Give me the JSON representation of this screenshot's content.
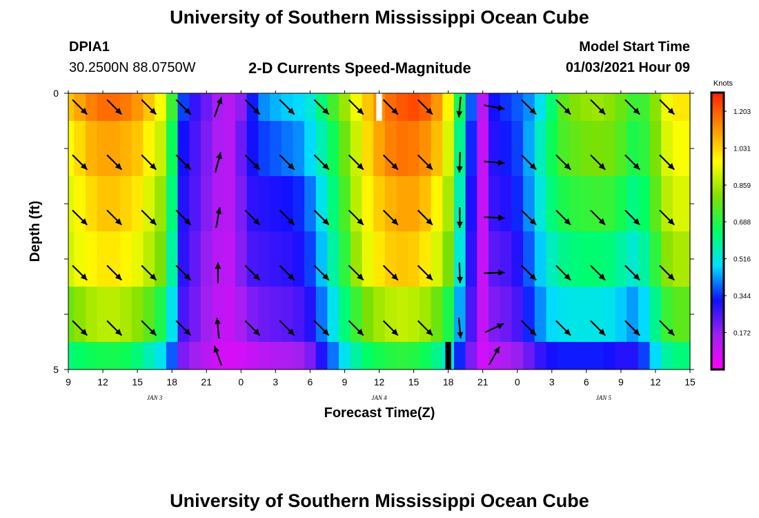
{
  "header": {
    "title": "University of Southern Mississippi Ocean Cube",
    "station": "DPIA1",
    "coords": "30.2500N 88.0750W",
    "subtitle": "2-D Currents Speed-Magnitude",
    "start_label": "Model Start Time",
    "start_value": "01/03/2021 Hour 09"
  },
  "footer": {
    "title": "University of Southern Mississippi Ocean Cube"
  },
  "chart_data": {
    "type": "heatmap",
    "xlabel": "Forecast Time(Z)",
    "ylabel": "Depth (ft)",
    "x_tick_labels": [
      "9",
      "12",
      "15",
      "18",
      "21",
      "0",
      "3",
      "6",
      "9",
      "12",
      "15",
      "18",
      "21",
      "0",
      "3",
      "6",
      "9",
      "12",
      "15"
    ],
    "x_range_hours": [
      0,
      54
    ],
    "day_labels": [
      {
        "label": "JAN 3",
        "hour": 7.5
      },
      {
        "label": "JAN 4",
        "hour": 27
      },
      {
        "label": "JAN 5",
        "hour": 46.5
      }
    ],
    "y_tick_labels": [
      "0",
      "5"
    ],
    "ylim": [
      0,
      5
    ],
    "depth_layers": [
      0.25,
      1.25,
      2.25,
      3.25,
      4.25,
      4.75
    ],
    "colorbar": {
      "unit": "Knots",
      "min": 0.0,
      "max": 1.29,
      "ticks": [
        1.203,
        1.031,
        0.859,
        0.688,
        0.516,
        0.344,
        0.172
      ],
      "colors": [
        "#ff00ff",
        "#a020f0",
        "#1010ff",
        "#00e0ff",
        "#00ff60",
        "#80e000",
        "#ffff00",
        "#ff9000",
        "#ff2000"
      ]
    },
    "speed_by_hour": [
      [
        1.05,
        1.1,
        1.15,
        1.18,
        1.18,
        1.16,
        1.12,
        1.05,
        0.96,
        0.72,
        0.36,
        0.28,
        0.22,
        0.15,
        0.12,
        0.18,
        0.33,
        0.42,
        0.45,
        0.47,
        0.48,
        0.52,
        0.62,
        0.73,
        0.84,
        0.95,
        1.05,
        1.13,
        1.18,
        1.21,
        1.23,
        1.2,
        1.12,
        0.98,
        0.66,
        0.38,
        0.12,
        0.32,
        0.35,
        0.38,
        0.42,
        0.5,
        0.63,
        0.76,
        0.81,
        0.83,
        0.84,
        0.82,
        0.78,
        0.72,
        0.72,
        0.82,
        0.95,
        1.0,
        1.0
      ],
      [
        0.97,
        1.02,
        1.08,
        1.1,
        1.1,
        1.08,
        1.05,
        0.98,
        0.9,
        0.66,
        0.32,
        0.26,
        0.2,
        0.14,
        0.12,
        0.22,
        0.32,
        0.36,
        0.38,
        0.4,
        0.42,
        0.48,
        0.56,
        0.66,
        0.78,
        0.9,
        1.02,
        1.1,
        1.15,
        1.17,
        1.16,
        1.13,
        1.06,
        0.92,
        0.6,
        0.34,
        0.1,
        0.3,
        0.33,
        0.36,
        0.44,
        0.55,
        0.66,
        0.74,
        0.77,
        0.79,
        0.8,
        0.79,
        0.75,
        0.68,
        0.7,
        0.8,
        0.92,
        0.96,
        0.96
      ],
      [
        0.93,
        0.98,
        1.02,
        1.05,
        1.05,
        1.03,
        1.0,
        0.92,
        0.84,
        0.62,
        0.3,
        0.25,
        0.19,
        0.13,
        0.12,
        0.2,
        0.29,
        0.3,
        0.31,
        0.32,
        0.34,
        0.4,
        0.5,
        0.62,
        0.74,
        0.88,
        0.98,
        1.04,
        1.08,
        1.1,
        1.1,
        1.06,
        0.98,
        0.86,
        0.56,
        0.31,
        0.1,
        0.28,
        0.3,
        0.34,
        0.42,
        0.52,
        0.62,
        0.68,
        0.7,
        0.71,
        0.72,
        0.71,
        0.67,
        0.61,
        0.64,
        0.76,
        0.88,
        0.92,
        0.92
      ],
      [
        0.91,
        0.95,
        0.98,
        1.0,
        1.0,
        0.98,
        0.94,
        0.88,
        0.8,
        0.58,
        0.29,
        0.23,
        0.17,
        0.12,
        0.11,
        0.19,
        0.26,
        0.27,
        0.28,
        0.29,
        0.31,
        0.36,
        0.46,
        0.58,
        0.7,
        0.84,
        0.94,
        1.0,
        1.04,
        1.05,
        1.04,
        1.0,
        0.92,
        0.8,
        0.52,
        0.29,
        0.1,
        0.24,
        0.26,
        0.3,
        0.38,
        0.47,
        0.55,
        0.6,
        0.62,
        0.63,
        0.63,
        0.62,
        0.58,
        0.53,
        0.58,
        0.7,
        0.82,
        0.86,
        0.86
      ],
      [
        0.78,
        0.82,
        0.86,
        0.88,
        0.88,
        0.86,
        0.82,
        0.76,
        0.68,
        0.5,
        0.26,
        0.21,
        0.16,
        0.11,
        0.1,
        0.15,
        0.2,
        0.22,
        0.23,
        0.24,
        0.26,
        0.3,
        0.4,
        0.5,
        0.62,
        0.72,
        0.8,
        0.85,
        0.88,
        0.89,
        0.88,
        0.85,
        0.78,
        0.68,
        0.44,
        0.26,
        0.1,
        0.2,
        0.22,
        0.26,
        0.34,
        0.42,
        0.48,
        0.5,
        0.51,
        0.51,
        0.51,
        0.5,
        0.47,
        0.43,
        0.48,
        0.6,
        0.72,
        0.76,
        0.76
      ],
      [
        0.62,
        0.64,
        0.66,
        0.67,
        0.67,
        0.66,
        0.62,
        0.56,
        0.5,
        0.38,
        0.2,
        0.16,
        0.12,
        0.08,
        0.07,
        0.08,
        0.1,
        0.12,
        0.13,
        0.14,
        0.16,
        0.2,
        0.3,
        0.4,
        0.5,
        0.58,
        0.64,
        0.67,
        0.69,
        0.7,
        0.69,
        0.66,
        0.6,
        0.52,
        0.34,
        0.2,
        0.08,
        0.12,
        0.14,
        0.17,
        0.22,
        0.28,
        0.32,
        0.33,
        0.33,
        0.33,
        0.33,
        0.32,
        0.3,
        0.3,
        0.36,
        0.48,
        0.58,
        0.62,
        0.62
      ]
    ],
    "vectors": {
      "hours": [
        1,
        4,
        7,
        10,
        13,
        16,
        19,
        22,
        25,
        28,
        31,
        34,
        37,
        40,
        43,
        46,
        49,
        52
      ],
      "directions_deg": [
        [
          135,
          135,
          135,
          135,
          20,
          135,
          135,
          135,
          135,
          135,
          135,
          185,
          100,
          135,
          135,
          135,
          135,
          135
        ],
        [
          135,
          135,
          135,
          135,
          15,
          135,
          135,
          135,
          135,
          135,
          135,
          182,
          95,
          135,
          135,
          135,
          135,
          135
        ],
        [
          135,
          135,
          135,
          135,
          10,
          135,
          135,
          135,
          135,
          135,
          135,
          180,
          92,
          135,
          135,
          135,
          135,
          135
        ],
        [
          135,
          135,
          135,
          135,
          0,
          135,
          135,
          135,
          135,
          135,
          135,
          178,
          88,
          135,
          135,
          135,
          135,
          135
        ],
        [
          135,
          135,
          135,
          135,
          355,
          135,
          135,
          135,
          135,
          135,
          135,
          175,
          65,
          135,
          135,
          135,
          135,
          135
        ],
        [
          null,
          null,
          null,
          null,
          340,
          null,
          null,
          null,
          null,
          null,
          null,
          null,
          30,
          null,
          null,
          null,
          null,
          null
        ]
      ]
    },
    "masked_cells": [
      {
        "hour": 27,
        "layer": 0,
        "color": "#ffffff"
      },
      {
        "hour": 33,
        "layer": 5,
        "color": "#000000"
      }
    ]
  }
}
